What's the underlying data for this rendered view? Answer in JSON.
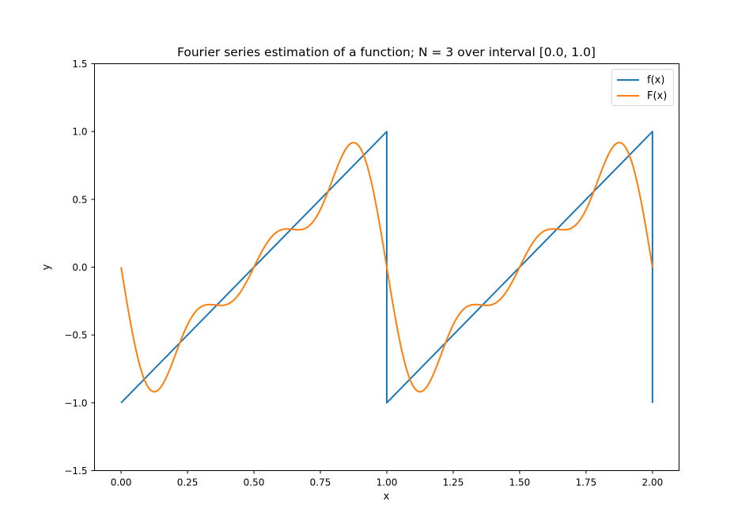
{
  "chart_data": {
    "type": "line",
    "title": "Fourier series estimation of a function; N = 3 over interval [0.0, 1.0]",
    "xlabel": "x",
    "ylabel": "y",
    "xlim": [
      -0.1,
      2.1
    ],
    "ylim": [
      -1.5,
      1.5
    ],
    "xticks": [
      "0.00",
      "0.25",
      "0.50",
      "0.75",
      "1.00",
      "1.25",
      "1.50",
      "1.75",
      "2.00"
    ],
    "yticks": [
      "1.5",
      "1.0",
      "0.5",
      "0.0",
      "−0.5",
      "−1.0",
      "−1.5"
    ],
    "grid": false,
    "legend_position": "upper right",
    "series": [
      {
        "name": "f(x)",
        "color": "#1f77b4",
        "x": [
          0.0,
          1.0,
          1.0,
          2.0,
          2.0
        ],
        "y": [
          -1.0,
          1.0,
          -1.0,
          1.0,
          -1.0
        ]
      },
      {
        "name": "F(x)",
        "color": "#ff7f0e",
        "x": [
          0.0,
          0.025,
          0.05,
          0.075,
          0.1,
          0.125,
          0.15,
          0.175,
          0.2,
          0.225,
          0.25,
          0.275,
          0.3,
          0.325,
          0.35,
          0.375,
          0.4,
          0.425,
          0.45,
          0.475,
          0.5,
          0.525,
          0.55,
          0.575,
          0.6,
          0.625,
          0.65,
          0.675,
          0.7,
          0.725,
          0.75,
          0.775,
          0.8,
          0.825,
          0.85,
          0.875,
          0.9,
          0.925,
          0.95,
          0.975,
          1.0,
          1.025,
          1.05,
          1.075,
          1.1,
          1.125,
          1.15,
          1.175,
          1.2,
          1.225,
          1.25,
          1.275,
          1.3,
          1.325,
          1.35,
          1.375,
          1.4,
          1.425,
          1.45,
          1.475,
          1.5,
          1.525,
          1.55,
          1.575,
          1.6,
          1.625,
          1.65,
          1.675,
          1.7,
          1.725,
          1.75,
          1.775,
          1.8,
          1.825,
          1.85,
          1.875,
          1.9,
          1.925,
          1.95,
          1.975,
          2.0
        ],
        "y": [
          0.0,
          -0.282,
          -0.533,
          -0.733,
          -0.865,
          -0.919,
          -0.898,
          -0.817,
          -0.698,
          -0.571,
          -0.46,
          -0.38,
          -0.333,
          -0.312,
          -0.301,
          -0.285,
          -0.251,
          -0.193,
          -0.117,
          -0.04,
          0.0,
          0.04,
          0.117,
          0.193,
          0.251,
          0.285,
          0.301,
          0.312,
          0.333,
          0.38,
          0.46,
          0.571,
          0.698,
          0.817,
          0.898,
          0.919,
          0.865,
          0.733,
          0.533,
          0.282,
          0.0,
          -0.282,
          -0.533,
          -0.733,
          -0.865,
          -0.919,
          -0.898,
          -0.817,
          -0.698,
          -0.571,
          -0.46,
          -0.38,
          -0.333,
          -0.312,
          -0.301,
          -0.285,
          -0.251,
          -0.193,
          -0.117,
          -0.04,
          0.0,
          0.04,
          0.117,
          0.193,
          0.251,
          0.285,
          0.301,
          0.312,
          0.333,
          0.38,
          0.46,
          0.571,
          0.698,
          0.817,
          0.898,
          0.919,
          0.865,
          0.733,
          0.533,
          0.282,
          0.0
        ]
      }
    ]
  }
}
